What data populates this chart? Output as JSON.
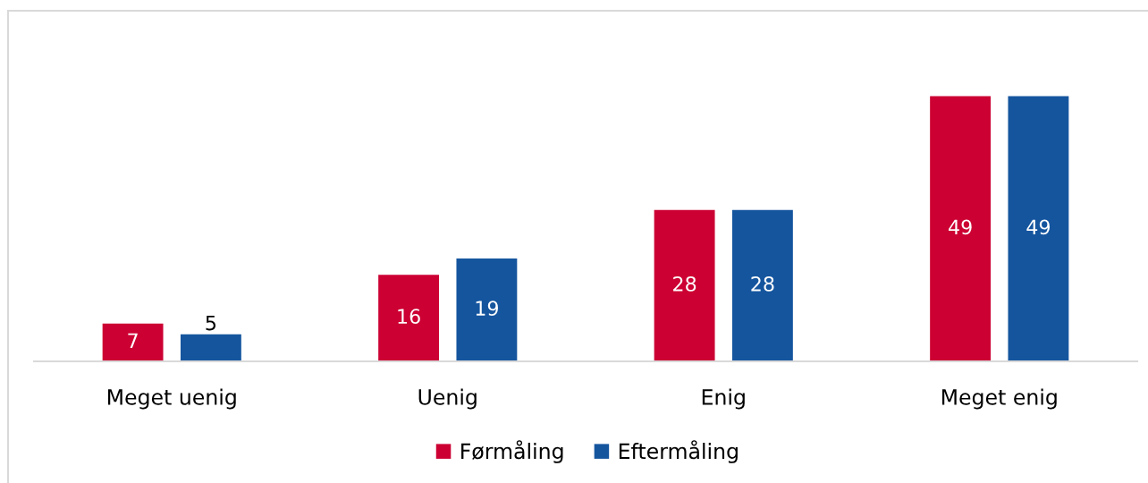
{
  "chart_data": {
    "type": "bar",
    "categories": [
      "Meget uenig",
      "Uenig",
      "Enig",
      "Meget enig"
    ],
    "series": [
      {
        "name": "Førmåling",
        "color": "#cc0033",
        "values": [
          7,
          16,
          28,
          49
        ]
      },
      {
        "name": "Eftermåling",
        "color": "#15559e",
        "values": [
          5,
          19,
          28,
          49
        ]
      }
    ],
    "data_labels": true,
    "legend": "bottom",
    "grid": false,
    "tick_labels": "x"
  }
}
